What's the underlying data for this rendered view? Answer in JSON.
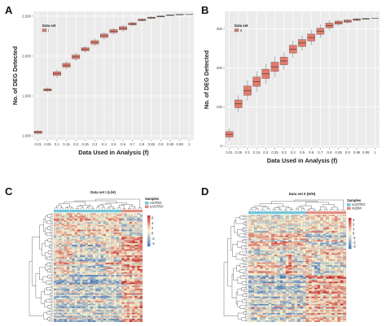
{
  "panels": [
    "A",
    "B",
    "C",
    "D"
  ],
  "chart_data": [
    {
      "type": "boxplot",
      "panel": "A",
      "xlabel": "Data Used in Analysis (f)",
      "ylabel": "No. of DEG Detected",
      "categories": [
        "0.01",
        "0.05",
        "0.1",
        "0.15",
        "0.2",
        "0.25",
        "0.3",
        "0.4",
        "0.5",
        "0.6",
        "0.7",
        "0.8",
        "0.85",
        "0.9",
        "0.95",
        "0.99",
        "1"
      ],
      "y_tick_labels": [
        "1,000",
        "1,500",
        "2,000",
        "2,500"
      ],
      "y_tick_values": [
        1000,
        1500,
        2000,
        2500
      ],
      "ylim": [
        950,
        2560
      ],
      "values": [
        1045,
        1577,
        1780,
        1885,
        1990,
        2085,
        2172,
        2255,
        2312,
        2348,
        2403,
        2453,
        2480,
        2497,
        2512,
        2520,
        2521
      ],
      "spread": [
        14,
        14,
        24,
        24,
        24,
        20,
        22,
        22,
        20,
        20,
        14,
        10,
        8,
        6,
        4,
        3,
        0
      ],
      "legend": {
        "title": "Data set",
        "entries": [
          "I"
        ]
      },
      "grid": true,
      "box_color": "#e37b6d",
      "panel_bg": "#ebebeb"
    },
    {
      "type": "boxplot",
      "panel": "B",
      "xlabel": "Data Used in Analysis (f)",
      "ylabel": "No. of DEG Detected",
      "categories": [
        "0.01",
        "0.05",
        "0.1",
        "0.15",
        "0.2",
        "0.25",
        "0.3",
        "0.4",
        "0.5",
        "0.6",
        "0.7",
        "0.8",
        "0.85",
        "0.9",
        "0.95",
        "0.99",
        "1"
      ],
      "y_tick_labels": [
        "0",
        "100",
        "200",
        "300"
      ],
      "y_tick_values": [
        0,
        100,
        200,
        300
      ],
      "ylim": [
        -5,
        345
      ],
      "values": [
        30,
        108,
        142,
        165,
        185,
        203,
        218,
        248,
        264,
        278,
        294,
        309,
        316,
        320,
        324,
        326,
        327
      ],
      "spread": [
        7,
        10,
        12,
        12,
        12,
        12,
        10,
        10,
        9,
        9,
        8,
        6,
        4,
        3,
        2,
        1,
        0
      ],
      "legend": {
        "title": "Data set",
        "entries": [
          "II"
        ]
      },
      "grid": true,
      "box_color": "#e37b6d",
      "panel_bg": "#ebebeb"
    },
    {
      "type": "heatmap",
      "panel": "C",
      "title": "Data set I (L/H)",
      "rows": 72,
      "cols": 34,
      "group_split": 26,
      "legend": {
        "title": "Samples",
        "entries": [
          "ASTRO",
          "xASTRO"
        ]
      },
      "group_colors": [
        "#6fc6d8",
        "#e48a7f"
      ],
      "color_scale": {
        "ticks": [
          "6",
          "4",
          "2",
          "0",
          "-2",
          "-4"
        ],
        "low": "#4a78b8",
        "mid": "#fcf6d2",
        "high": "#c72b2b"
      }
    },
    {
      "type": "heatmap",
      "panel": "D",
      "title": "Data set II (H/H)",
      "rows": 72,
      "cols": 34,
      "group_split": 20,
      "legend": {
        "title": "Samples",
        "entries": [
          "xASTRO",
          "xGBM"
        ]
      },
      "group_colors": [
        "#6fc6d8",
        "#e48a7f"
      ],
      "color_scale": {
        "ticks": [
          "3",
          "2",
          "1",
          "0",
          "-1",
          "-2",
          "-3"
        ],
        "low": "#4a78b8",
        "mid": "#fcf6d2",
        "high": "#c72b2b"
      }
    }
  ]
}
